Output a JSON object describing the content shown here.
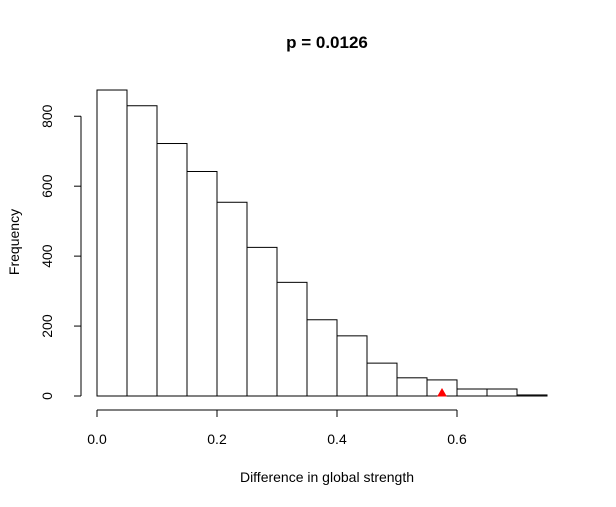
{
  "chart_data": {
    "type": "bar",
    "title": "p = 0.0126",
    "xlabel": "Difference in global strength",
    "ylabel": "Frequency",
    "xlim": [
      0,
      0.8
    ],
    "ylim": [
      0,
      880
    ],
    "bin_width": 0.05,
    "bins_start": [
      0.0,
      0.05,
      0.1,
      0.15,
      0.2,
      0.25,
      0.3,
      0.35,
      0.4,
      0.45,
      0.5,
      0.55,
      0.6,
      0.65,
      0.7
    ],
    "values": [
      875,
      830,
      722,
      642,
      554,
      425,
      325,
      218,
      172,
      94,
      52,
      46,
      20,
      20,
      3
    ],
    "x_ticks": [
      0.0,
      0.2,
      0.4,
      0.6
    ],
    "x_tick_labels": [
      "0.0",
      "0.2",
      "0.4",
      "0.6"
    ],
    "y_ticks": [
      0,
      200,
      400,
      600,
      800
    ],
    "y_tick_labels": [
      "0",
      "200",
      "400",
      "600",
      "800"
    ],
    "observed_marker": {
      "x": 0.575,
      "y": 0,
      "color": "#ff0000",
      "shape": "triangle"
    },
    "grid": false,
    "legend": "none"
  }
}
